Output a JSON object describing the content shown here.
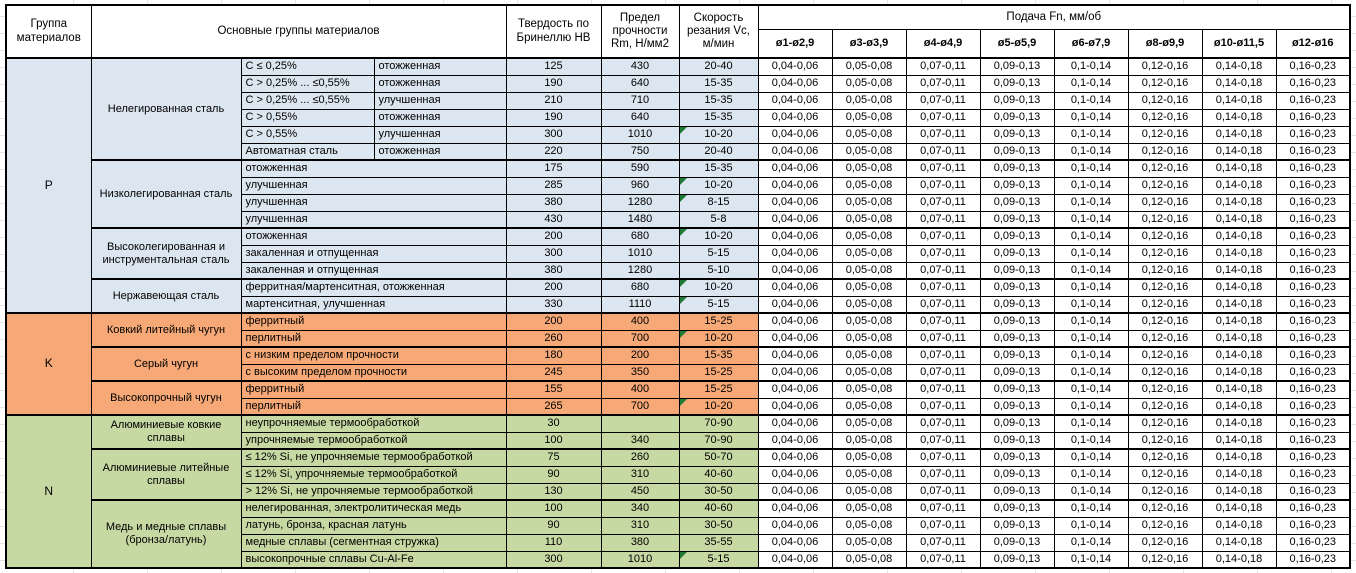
{
  "table": {
    "header": {
      "group_col": "Группа материалов",
      "main_groups_col": "Основные группы материалов",
      "hardness_col": "Твердость по Бринеллю HB",
      "strength_col": "Предел прочности Rm, Н/мм2",
      "speed_col": "Скорость резания Vc, м/мин",
      "feed_title": "Подача Fn, мм/об",
      "feed_columns": [
        "ø1-ø2,9",
        "ø3-ø3,9",
        "ø4-ø4,9",
        "ø5-ø5,9",
        "ø6-ø7,9",
        "ø8-ø9,9",
        "ø10-ø11,5",
        "ø12-ø16"
      ]
    },
    "feed_values_all_rows": [
      "0,04-0,06",
      "0,05-0,08",
      "0,07-0,11",
      "0,09-0,13",
      "0,1-0,14",
      "0,12-0,16",
      "0,14-0,18",
      "0,16-0,23"
    ],
    "marker_color": "#1f7a33",
    "groups": [
      {
        "letter": "P",
        "color": "#dce6f1",
        "subgroups": [
          {
            "name": "Нелегированная сталь",
            "rows": [
              {
                "desc1": "C ≤ 0,25%",
                "desc2": "отожженная",
                "hb": "125",
                "rm": "430",
                "vc": "20-40",
                "marker": false
              },
              {
                "desc1": "C > 0,25% ... ≤0,55%",
                "desc2": "отожженная",
                "hb": "190",
                "rm": "640",
                "vc": "15-35",
                "marker": false
              },
              {
                "desc1": "C > 0,25% ... ≤0,55%",
                "desc2": "улучшенная",
                "hb": "210",
                "rm": "710",
                "vc": "15-35",
                "marker": false
              },
              {
                "desc1": "C > 0,55%",
                "desc2": "отожженная",
                "hb": "190",
                "rm": "640",
                "vc": "15-35",
                "marker": false
              },
              {
                "desc1": "C > 0,55%",
                "desc2": "улучшенная",
                "hb": "300",
                "rm": "1010",
                "vc": "10-20",
                "marker": true
              },
              {
                "desc1": "Автоматная сталь",
                "desc2": "отожженная",
                "hb": "220",
                "rm": "750",
                "vc": "20-40",
                "marker": false
              }
            ]
          },
          {
            "name": "Низколегированная сталь",
            "rows": [
              {
                "desc": "отожженная",
                "hb": "175",
                "rm": "590",
                "vc": "15-35",
                "marker": false
              },
              {
                "desc": "улучшенная",
                "hb": "285",
                "rm": "960",
                "vc": "10-20",
                "marker": true
              },
              {
                "desc": "улучшенная",
                "hb": "380",
                "rm": "1280",
                "vc": "8-15",
                "marker": true
              },
              {
                "desc": "улучшенная",
                "hb": "430",
                "rm": "1480",
                "vc": "5-8",
                "marker": false
              }
            ]
          },
          {
            "name": "Высоколегированная и инструментальная сталь",
            "rows": [
              {
                "desc": "отожженная",
                "hb": "200",
                "rm": "680",
                "vc": "10-20",
                "marker": true
              },
              {
                "desc": "закаленная и отпущенная",
                "hb": "300",
                "rm": "1010",
                "vc": "5-15",
                "marker": false
              },
              {
                "desc": "закаленная и отпущенная",
                "hb": "380",
                "rm": "1280",
                "vc": "5-10",
                "marker": false
              }
            ]
          },
          {
            "name": "Нержавеющая сталь",
            "rows": [
              {
                "desc": "ферритная/мартенситная, отожженная",
                "hb": "200",
                "rm": "680",
                "vc": "10-20",
                "marker": true
              },
              {
                "desc": "мартенситная, улучшенная",
                "hb": "330",
                "rm": "1110",
                "vc": "5-15",
                "marker": true
              }
            ]
          }
        ]
      },
      {
        "letter": "K",
        "color": "#f6a976",
        "subgroups": [
          {
            "name": "Ковкий литейный чугун",
            "rows": [
              {
                "desc": "ферритный",
                "hb": "200",
                "rm": "400",
                "vc": "15-25",
                "marker": false
              },
              {
                "desc": "перлитный",
                "hb": "260",
                "rm": "700",
                "vc": "10-20",
                "marker": true
              }
            ]
          },
          {
            "name": "Серый чугун",
            "rows": [
              {
                "desc": "с низким пределом прочности",
                "hb": "180",
                "rm": "200",
                "vc": "15-35",
                "marker": false
              },
              {
                "desc": "с высоким пределом прочности",
                "hb": "245",
                "rm": "350",
                "vc": "15-25",
                "marker": false
              }
            ]
          },
          {
            "name": "Высокопрочный чугун",
            "rows": [
              {
                "desc": "ферритный",
                "hb": "155",
                "rm": "400",
                "vc": "15-25",
                "marker": false
              },
              {
                "desc": "перлитный",
                "hb": "265",
                "rm": "700",
                "vc": "10-20",
                "marker": true
              }
            ]
          }
        ]
      },
      {
        "letter": "N",
        "color": "#c6d9a3",
        "subgroups": [
          {
            "name": "Алюминиевые ковкие сплавы",
            "rows": [
              {
                "desc": "неупрочняемые термообработкой",
                "hb": "30",
                "rm": "",
                "vc": "70-90",
                "marker": false
              },
              {
                "desc": "упрочняемые термообработкой",
                "hb": "100",
                "rm": "340",
                "vc": "70-90",
                "marker": false
              }
            ]
          },
          {
            "name": "Алюминиевые литейные сплавы",
            "rows": [
              {
                "desc": "≤ 12% Si, не упрочняемые термообработкой",
                "hb": "75",
                "rm": "260",
                "vc": "50-70",
                "marker": false
              },
              {
                "desc": "≤ 12% Si, упрочняемые термообработкой",
                "hb": "90",
                "rm": "310",
                "vc": "40-60",
                "marker": false
              },
              {
                "desc": "> 12% Si, не упрочняемые термообработкой",
                "hb": "130",
                "rm": "450",
                "vc": "30-50",
                "marker": false
              }
            ]
          },
          {
            "name": "Медь и медные сплавы (бронза/латунь)",
            "rows": [
              {
                "desc": "нелегированная, электролитическая медь",
                "hb": "100",
                "rm": "340",
                "vc": "40-60",
                "marker": false
              },
              {
                "desc": "латунь, бронза, красная латунь",
                "hb": "90",
                "rm": "310",
                "vc": "30-50",
                "marker": false
              },
              {
                "desc": "медные сплавы (сегментная стружка)",
                "hb": "110",
                "rm": "380",
                "vc": "35-55",
                "marker": false
              },
              {
                "desc": "высокопрочные сплавы Cu-Al-Fe",
                "hb": "300",
                "rm": "1010",
                "vc": "5-15",
                "marker": true
              }
            ]
          }
        ]
      }
    ]
  }
}
